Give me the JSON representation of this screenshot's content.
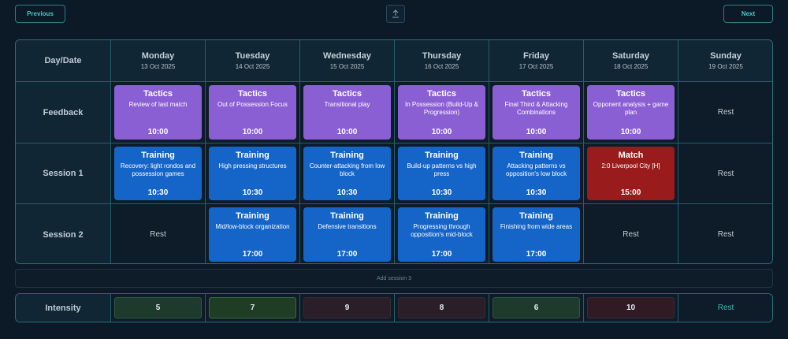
{
  "nav": {
    "previous_label": "Previous",
    "next_label": "Next"
  },
  "header": {
    "corner_label": "Day/Date",
    "days": [
      {
        "name": "Monday",
        "date": "13 Oct 2025"
      },
      {
        "name": "Tuesday",
        "date": "14 Oct 2025"
      },
      {
        "name": "Wednesday",
        "date": "15 Oct 2025"
      },
      {
        "name": "Thursday",
        "date": "16 Oct 2025"
      },
      {
        "name": "Friday",
        "date": "17 Oct 2025"
      },
      {
        "name": "Saturday",
        "date": "18 Oct 2025"
      },
      {
        "name": "Sunday",
        "date": "19 Oct 2025"
      }
    ]
  },
  "rows": [
    {
      "label": "Feedback",
      "cells": [
        {
          "type": "tactics",
          "title": "Tactics",
          "desc": "Review of last match",
          "time": "10:00"
        },
        {
          "type": "tactics",
          "title": "Tactics",
          "desc": "Out of Possession Focus",
          "time": "10:00"
        },
        {
          "type": "tactics",
          "title": "Tactics",
          "desc": "Transitional play",
          "time": "10:00"
        },
        {
          "type": "tactics",
          "title": "Tactics",
          "desc": "In Possession (Build-Up & Progression)",
          "time": "10:00"
        },
        {
          "type": "tactics",
          "title": "Tactics",
          "desc": "Final Third & Attacking Combinations",
          "time": "10:00"
        },
        {
          "type": "tactics",
          "title": "Tactics",
          "desc": "Opponent analysis + game plan",
          "time": "10:00"
        },
        {
          "type": "rest",
          "text": "Rest"
        }
      ]
    },
    {
      "label": "Session 1",
      "cells": [
        {
          "type": "training",
          "title": "Training",
          "desc": "Recovery: light rondos and possession games",
          "time": "10:30"
        },
        {
          "type": "training",
          "title": "Training",
          "desc": "High pressing structures",
          "time": "10:30"
        },
        {
          "type": "training",
          "title": "Training",
          "desc": "Counter-attacking from low block",
          "time": "10:30"
        },
        {
          "type": "training",
          "title": "Training",
          "desc": "Build-up patterns vs high press",
          "time": "10:30"
        },
        {
          "type": "training",
          "title": "Training",
          "desc": "Attacking patterns vs opposition's low block",
          "time": "10:30"
        },
        {
          "type": "match",
          "title": "Match",
          "desc": "2:0 Liverpool City [H]",
          "time": "15:00"
        },
        {
          "type": "rest",
          "text": "Rest"
        }
      ]
    },
    {
      "label": "Session 2",
      "cells": [
        {
          "type": "rest",
          "text": "Rest"
        },
        {
          "type": "training",
          "title": "Training",
          "desc": "Mid/low-block organization",
          "time": "17:00"
        },
        {
          "type": "training",
          "title": "Training",
          "desc": "Defensive transitions",
          "time": "17:00"
        },
        {
          "type": "training",
          "title": "Training",
          "desc": "Progressing through opposition's mid-block",
          "time": "17:00"
        },
        {
          "type": "training",
          "title": "Training",
          "desc": "Finishing from wide areas",
          "time": "17:00"
        },
        {
          "type": "rest",
          "text": "Rest"
        },
        {
          "type": "rest",
          "text": "Rest"
        }
      ]
    }
  ],
  "add_session_label": "Add session 3",
  "intensity": {
    "label": "Intensity",
    "values": [
      {
        "value": "5",
        "tone": "green"
      },
      {
        "value": "7",
        "tone": "green2"
      },
      {
        "value": "9",
        "tone": "red"
      },
      {
        "value": "8",
        "tone": "red"
      },
      {
        "value": "6",
        "tone": "green"
      },
      {
        "value": "10",
        "tone": "red2"
      },
      {
        "value": "Rest",
        "tone": "rest"
      }
    ]
  },
  "colors": {
    "tactics": "#8b5fd4",
    "training": "#1565c8",
    "match": "#9a1b1b",
    "accent": "#4fc3c8"
  },
  "icons": {
    "export": "upload-icon"
  }
}
